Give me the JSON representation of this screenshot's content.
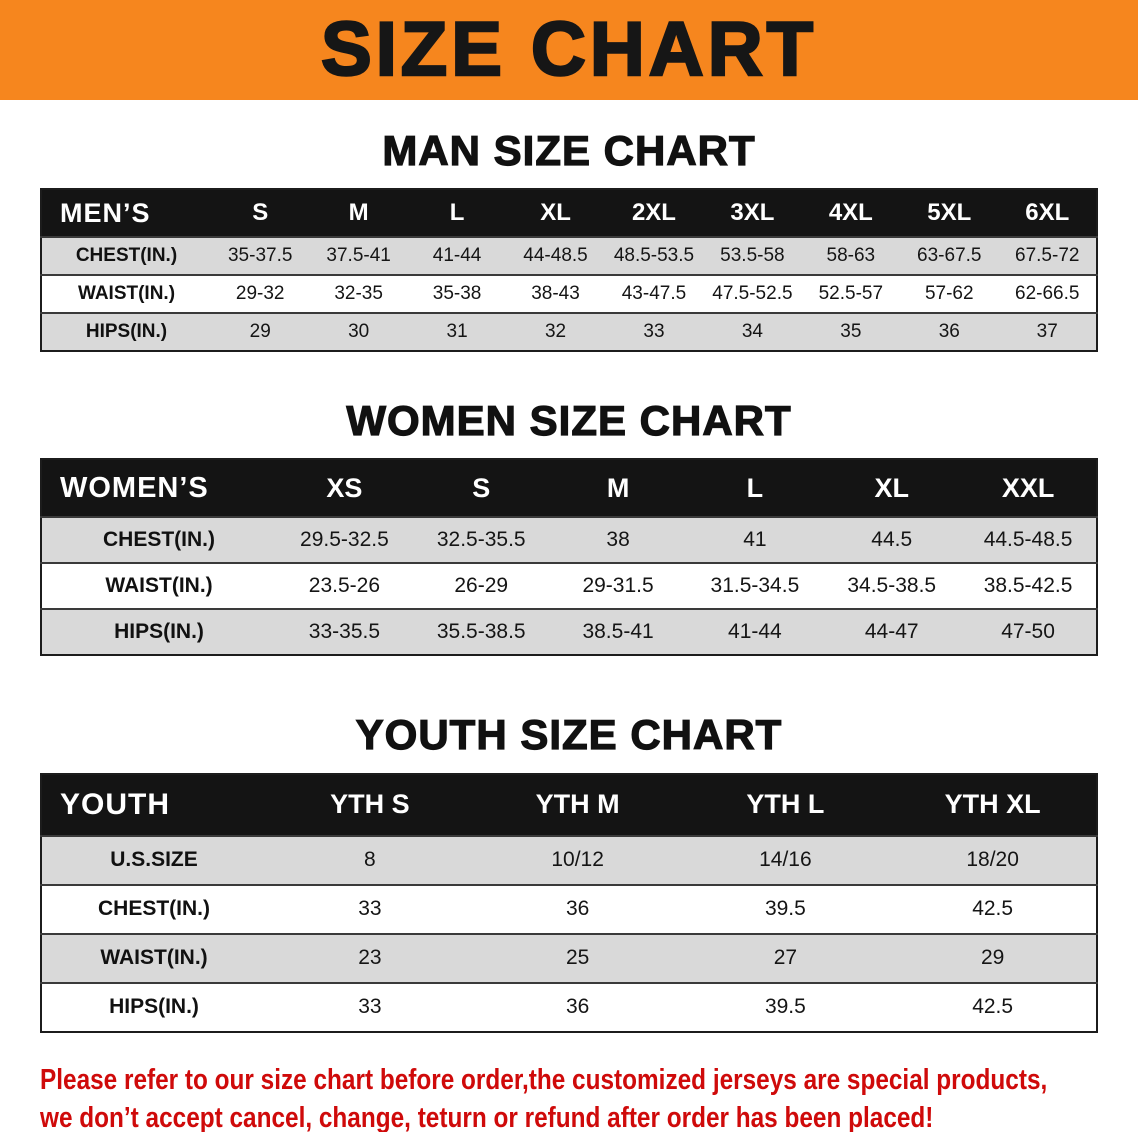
{
  "banner": {
    "title": "SIZE CHART",
    "bg_color": "#f6861e",
    "text_color": "#161616"
  },
  "sections": [
    {
      "heading": "MAN SIZE CHART",
      "table": {
        "corner_label": "MEN’S",
        "columns": [
          "S",
          "M",
          "L",
          "XL",
          "2XL",
          "3XL",
          "4XL",
          "5XL",
          "6XL"
        ],
        "rows": [
          {
            "label": "CHEST(IN.)",
            "values": [
              "35-37.5",
              "37.5-41",
              "41-44",
              "44-48.5",
              "48.5-53.5",
              "53.5-58",
              "58-63",
              "63-67.5",
              "67.5-72"
            ]
          },
          {
            "label": "WAIST(IN.)",
            "values": [
              "29-32",
              "32-35",
              "35-38",
              "38-43",
              "43-47.5",
              "47.5-52.5",
              "52.5-57",
              "57-62",
              "62-66.5"
            ]
          },
          {
            "label": "HIPS(IN.)",
            "values": [
              "29",
              "30",
              "31",
              "32",
              "33",
              "34",
              "35",
              "36",
              "37"
            ]
          }
        ]
      }
    },
    {
      "heading": "WOMEN SIZE CHART",
      "table": {
        "corner_label": "WOMEN’S",
        "columns": [
          "XS",
          "S",
          "M",
          "L",
          "XL",
          "XXL"
        ],
        "rows": [
          {
            "label": "CHEST(IN.)",
            "values": [
              "29.5-32.5",
              "32.5-35.5",
              "38",
              "41",
              "44.5",
              "44.5-48.5"
            ]
          },
          {
            "label": "WAIST(IN.)",
            "values": [
              "23.5-26",
              "26-29",
              "29-31.5",
              "31.5-34.5",
              "34.5-38.5",
              "38.5-42.5"
            ]
          },
          {
            "label": "HIPS(IN.)",
            "values": [
              "33-35.5",
              "35.5-38.5",
              "38.5-41",
              "41-44",
              "44-47",
              "47-50"
            ]
          }
        ]
      }
    },
    {
      "heading": "YOUTH SIZE CHART",
      "table": {
        "corner_label": "YOUTH",
        "columns": [
          "YTH S",
          "YTH M",
          "YTH L",
          "YTH XL"
        ],
        "rows": [
          {
            "label": "U.S.SIZE",
            "values": [
              "8",
              "10/12",
              "14/16",
              "18/20"
            ]
          },
          {
            "label": "CHEST(IN.)",
            "values": [
              "33",
              "36",
              "39.5",
              "42.5"
            ]
          },
          {
            "label": "WAIST(IN.)",
            "values": [
              "23",
              "25",
              "27",
              "29"
            ]
          },
          {
            "label": "HIPS(IN.)",
            "values": [
              "33",
              "36",
              "39.5",
              "42.5"
            ]
          }
        ]
      }
    }
  ],
  "disclaimer": {
    "color": "#cf0a0a",
    "lines": [
      "Please refer to our size chart before order,the customized jerseys are special products,",
      "we don’t accept cancel, change, teturn or refund after order has been placed!"
    ]
  }
}
